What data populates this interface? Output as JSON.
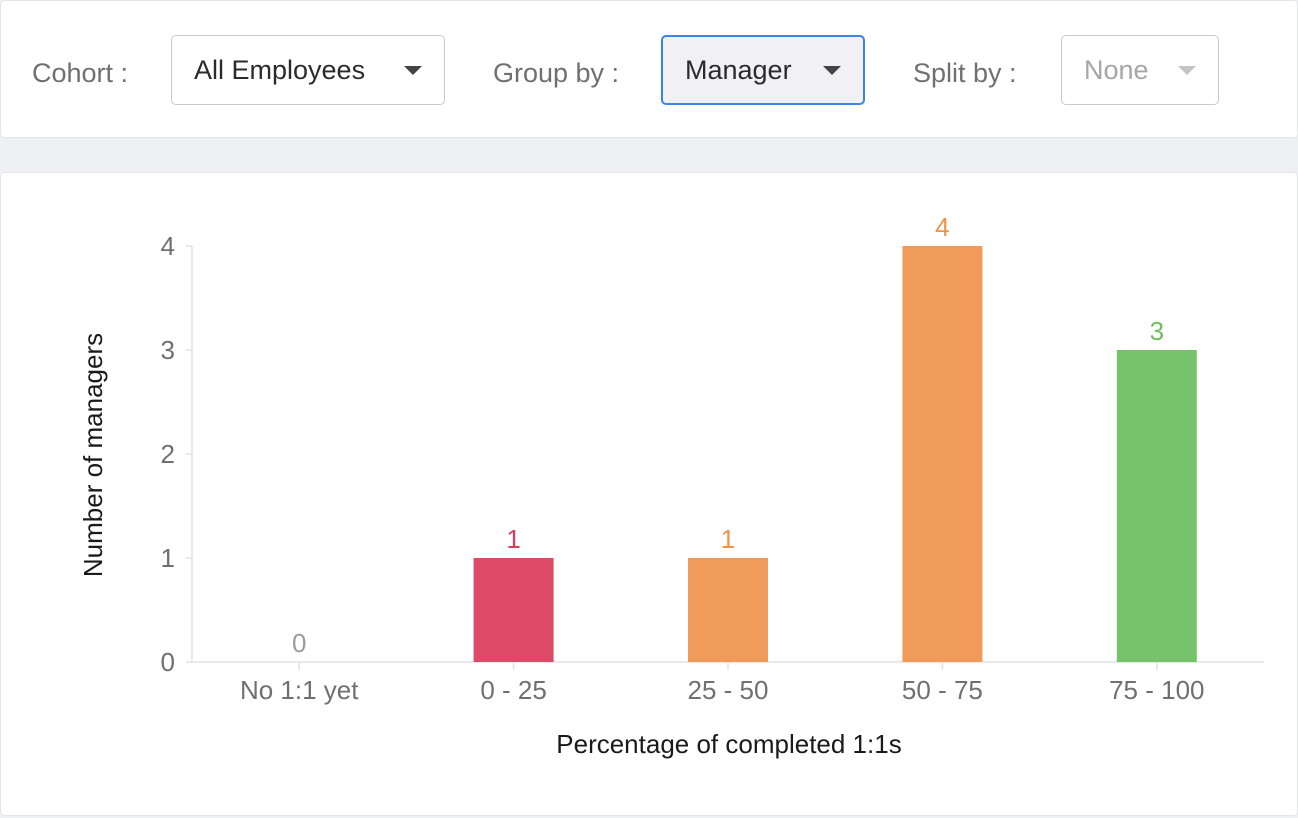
{
  "filters": {
    "cohort": {
      "label": "Cohort :",
      "value": "All Employees"
    },
    "group_by": {
      "label": "Group by :",
      "value": "Manager"
    },
    "split_by": {
      "label": "Split by :",
      "value": "None"
    }
  },
  "chart_data": {
    "type": "bar",
    "categories": [
      "No 1:1 yet",
      "0 - 25",
      "25 - 50",
      "50 - 75",
      "75 - 100"
    ],
    "values": [
      0,
      1,
      1,
      4,
      3
    ],
    "data_labels": [
      "0",
      "1",
      "1",
      "4",
      "3"
    ],
    "colors": [
      "#9b9b9b",
      "#dc4a68",
      "#f09b5a",
      "#f09b5a",
      "#77c36c"
    ],
    "label_colors": [
      "#9b9b9b",
      "#d6405e",
      "#ee9449",
      "#ee9449",
      "#6cbf5c"
    ],
    "xlabel": "Percentage of completed 1:1s",
    "ylabel": "Number of managers",
    "ylim": [
      0,
      4
    ],
    "yticks": [
      "0",
      "1",
      "2",
      "3",
      "4"
    ],
    "grid": false
  }
}
